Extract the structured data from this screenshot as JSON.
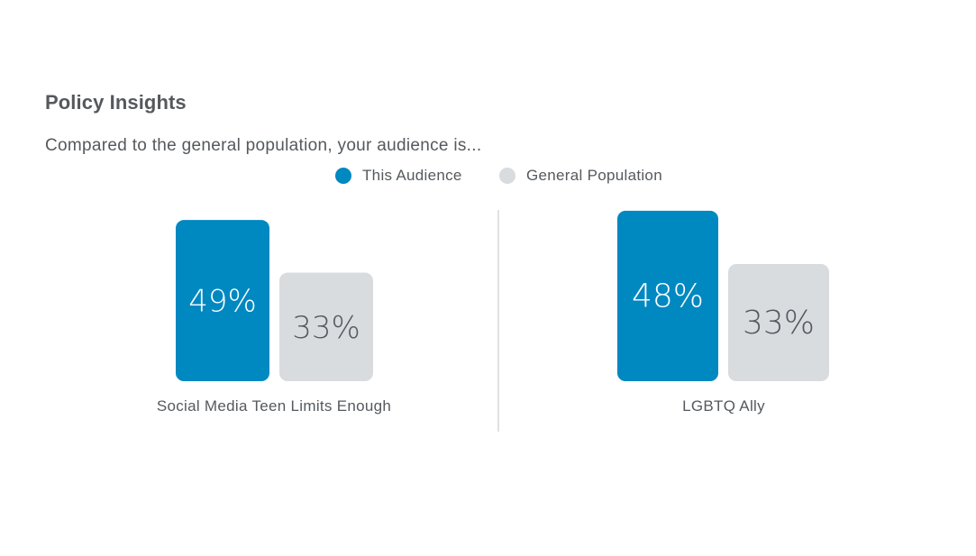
{
  "header": {
    "title": "Policy Insights",
    "subtitle": "Compared to the general population, your audience is..."
  },
  "legend": [
    {
      "label": "This Audience",
      "color": "#0088c1"
    },
    {
      "label": "General Population",
      "color": "#d8dcdf"
    }
  ],
  "chart_data": [
    {
      "type": "bar",
      "categories": [
        "Social Media Teen Limits Enough"
      ],
      "series": [
        {
          "name": "This Audience",
          "values": [
            49
          ]
        },
        {
          "name": "General Population",
          "values": [
            33
          ]
        }
      ],
      "value_labels": [
        "49%",
        "33%"
      ],
      "unit": "%"
    },
    {
      "type": "bar",
      "categories": [
        "LGBTQ Ally"
      ],
      "series": [
        {
          "name": "This Audience",
          "values": [
            48
          ]
        },
        {
          "name": "General Population",
          "values": [
            33
          ]
        }
      ],
      "value_labels": [
        "48%",
        "33%"
      ],
      "unit": "%"
    }
  ],
  "colors": {
    "audience": "#0088c1",
    "population": "#d8dcdf",
    "audience_text": "#ffffff",
    "population_text": "#55595d",
    "divider": "#d5d8db"
  }
}
